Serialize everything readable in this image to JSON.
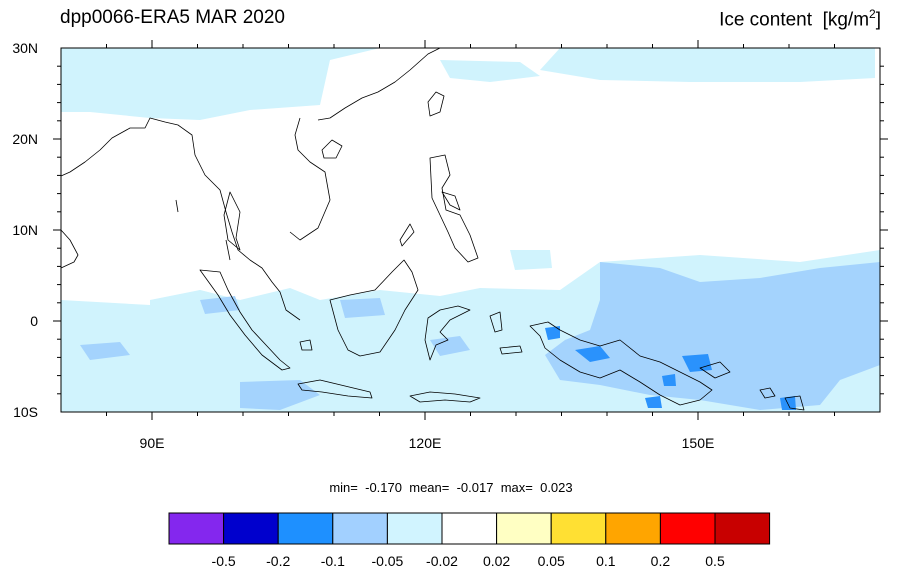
{
  "title": "dpp0066-ERA5 MAR 2020",
  "variable_label": "Ice content",
  "units": "[kg/m",
  "units_sup": "2",
  "units_close": "]",
  "stats": {
    "min_label": "min=",
    "min": "-0.170",
    "mean_label": "mean=",
    "mean": "-0.017",
    "max_label": "max=",
    "max": "0.023"
  },
  "map": {
    "lon_range": [
      80,
      170
    ],
    "lat_range": [
      -10,
      30
    ],
    "lon_ticks": [
      {
        "value": 90,
        "label": "90E"
      },
      {
        "value": 120,
        "label": "120E"
      },
      {
        "value": 150,
        "label": "150E"
      }
    ],
    "lat_ticks": [
      {
        "value": 30,
        "label": "30N"
      },
      {
        "value": 20,
        "label": "20N"
      },
      {
        "value": 10,
        "label": "10N"
      },
      {
        "value": 0,
        "label": "0"
      },
      {
        "value": -10,
        "label": "10S"
      }
    ],
    "colors": {
      "light": "#d0f3fd",
      "medium": "#a4d3fd",
      "dark": "#2a92fc",
      "coast": "#000000"
    }
  },
  "colorbar": {
    "colors": [
      "#8427ee",
      "#0000cd",
      "#1e90ff",
      "#a2d0ff",
      "#d1f4ff",
      "#ffffff",
      "#ffffc3",
      "#ffe033",
      "#ffa500",
      "#ff0000",
      "#c80000"
    ],
    "labels": [
      "-0.5",
      "-0.2",
      "-0.1",
      "-0.05",
      "-0.02",
      "0.02",
      "0.05",
      "0.1",
      "0.2",
      "0.5"
    ]
  }
}
